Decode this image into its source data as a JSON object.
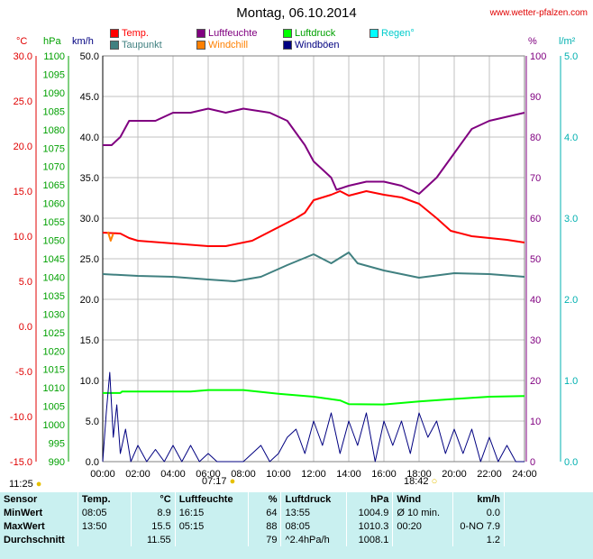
{
  "header": {
    "title": "Montag, 06.10.2014",
    "site": "www.wetter-pfalzen.com"
  },
  "legend": [
    {
      "label": "Temp.",
      "color": "#ff0000"
    },
    {
      "label": "Taupunkt",
      "color": "#408080"
    },
    {
      "label": "Luftfeuchte",
      "color": "#800080"
    },
    {
      "label": "Windchill",
      "color": "#ff8000"
    },
    {
      "label": "Luftdruck",
      "color": "#00ff00"
    },
    {
      "label": "Windböen",
      "color": "#000080"
    },
    {
      "label": "Regen°",
      "color": "#00ffff"
    }
  ],
  "units": {
    "temp": "°C",
    "pressure": "hPa",
    "wind": "km/h",
    "humidity": "%",
    "rain": "l/m²"
  },
  "sun_marks": {
    "sunrise_prev": "11:25",
    "sunrise": "07:17",
    "sunset": "18:42"
  },
  "chart_data": {
    "type": "line",
    "x": [
      "00:00",
      "02:00",
      "04:00",
      "06:00",
      "08:00",
      "10:00",
      "12:00",
      "14:00",
      "16:00",
      "18:00",
      "20:00",
      "22:00",
      "24:00"
    ],
    "axes": {
      "temp": {
        "label": "°C",
        "range": [
          -15,
          30
        ],
        "ticks": [
          "30.0",
          "25.0",
          "20.0",
          "15.0",
          "10.0",
          "5.0",
          "0.0",
          "-5.0",
          "-10.0",
          "-15.0"
        ]
      },
      "pressure": {
        "label": "hPa",
        "range": [
          990,
          1100
        ],
        "ticks": [
          "1100",
          "1095",
          "1090",
          "1085",
          "1080",
          "1075",
          "1070",
          "1065",
          "1060",
          "1055",
          "1050",
          "1045",
          "1040",
          "1035",
          "1030",
          "1025",
          "1020",
          "1015",
          "1010",
          "1005",
          "1000",
          "995",
          "990"
        ]
      },
      "wind": {
        "label": "km/h",
        "range": [
          0,
          50
        ],
        "ticks": [
          "50.0",
          "45.0",
          "40.0",
          "35.0",
          "30.0",
          "25.0",
          "20.0",
          "15.0",
          "10.0",
          "5.0",
          "0.0"
        ]
      },
      "humidity": {
        "label": "%",
        "range": [
          0,
          100
        ],
        "ticks": [
          "100",
          "90",
          "80",
          "70",
          "60",
          "50",
          "40",
          "30",
          "20",
          "10",
          "0"
        ]
      },
      "rain": {
        "label": "l/m²",
        "range": [
          0,
          5
        ],
        "ticks": [
          "5.0",
          "4.0",
          "3.0",
          "2.0",
          "1.0",
          "0.0"
        ]
      }
    },
    "series": [
      {
        "name": "Temp.",
        "axis": "temp",
        "color": "#ff0000",
        "points": [
          [
            0,
            10.4
          ],
          [
            1,
            10.3
          ],
          [
            1.5,
            9.8
          ],
          [
            2,
            9.5
          ],
          [
            4,
            9.2
          ],
          [
            6,
            8.9
          ],
          [
            7,
            8.9
          ],
          [
            8.5,
            9.5
          ],
          [
            10,
            11.0
          ],
          [
            11,
            12.0
          ],
          [
            11.5,
            12.6
          ],
          [
            12,
            14.0
          ],
          [
            13,
            14.6
          ],
          [
            13.5,
            15.0
          ],
          [
            14,
            14.5
          ],
          [
            15,
            15.0
          ],
          [
            16,
            14.6
          ],
          [
            17,
            14.3
          ],
          [
            18,
            13.6
          ],
          [
            19,
            12.0
          ],
          [
            19.8,
            10.6
          ],
          [
            21,
            10.0
          ],
          [
            23,
            9.6
          ],
          [
            24,
            9.3
          ]
        ]
      },
      {
        "name": "Taupunkt",
        "axis": "temp",
        "color": "#408080",
        "points": [
          [
            0,
            5.8
          ],
          [
            2,
            5.6
          ],
          [
            4,
            5.5
          ],
          [
            6,
            5.2
          ],
          [
            7.5,
            5.0
          ],
          [
            9,
            5.5
          ],
          [
            10.5,
            6.8
          ],
          [
            12,
            8.0
          ],
          [
            13,
            7.0
          ],
          [
            14,
            8.2
          ],
          [
            14.5,
            7.0
          ],
          [
            16,
            6.2
          ],
          [
            18,
            5.4
          ],
          [
            20,
            5.9
          ],
          [
            22,
            5.8
          ],
          [
            24,
            5.5
          ]
        ]
      },
      {
        "name": "Luftfeuchte",
        "axis": "humidity",
        "color": "#800080",
        "points": [
          [
            0,
            78
          ],
          [
            0.5,
            78
          ],
          [
            1,
            80
          ],
          [
            1.5,
            84
          ],
          [
            3,
            84
          ],
          [
            4,
            86
          ],
          [
            5,
            86
          ],
          [
            6,
            87
          ],
          [
            7,
            86
          ],
          [
            8,
            87
          ],
          [
            9.5,
            86
          ],
          [
            10.5,
            84
          ],
          [
            11.5,
            78
          ],
          [
            12,
            74
          ],
          [
            12.5,
            72
          ],
          [
            13,
            70
          ],
          [
            13.3,
            67
          ],
          [
            14,
            68
          ],
          [
            15,
            69
          ],
          [
            16,
            69
          ],
          [
            17,
            68
          ],
          [
            18,
            66
          ],
          [
            19,
            70
          ],
          [
            20,
            76
          ],
          [
            21,
            82
          ],
          [
            22,
            84
          ],
          [
            23,
            85
          ],
          [
            24,
            86
          ]
        ]
      },
      {
        "name": "Windchill",
        "axis": "temp",
        "color": "#ff8000",
        "points": [
          [
            0.3,
            10.5
          ],
          [
            0.45,
            9.5
          ],
          [
            0.6,
            10.3
          ]
        ]
      },
      {
        "name": "Luftdruck",
        "axis": "pressure",
        "color": "#00ff00",
        "points": [
          [
            0,
            1008.6
          ],
          [
            1,
            1008.6
          ],
          [
            1.1,
            1009.0
          ],
          [
            5,
            1009.0
          ],
          [
            6,
            1009.4
          ],
          [
            8,
            1009.4
          ],
          [
            10,
            1008.4
          ],
          [
            12,
            1007.6
          ],
          [
            13.5,
            1006.6
          ],
          [
            14,
            1005.6
          ],
          [
            16,
            1005.5
          ],
          [
            18,
            1006.3
          ],
          [
            20,
            1007.0
          ],
          [
            22,
            1007.6
          ],
          [
            24,
            1007.8
          ]
        ]
      },
      {
        "name": "Windböen",
        "axis": "wind",
        "color": "#000080",
        "points": [
          [
            0,
            0
          ],
          [
            0.2,
            6
          ],
          [
            0.4,
            11
          ],
          [
            0.6,
            3
          ],
          [
            0.8,
            7
          ],
          [
            1,
            1
          ],
          [
            1.3,
            4
          ],
          [
            1.6,
            0
          ],
          [
            2,
            2
          ],
          [
            2.5,
            0
          ],
          [
            3,
            1.5
          ],
          [
            3.5,
            0
          ],
          [
            4,
            2
          ],
          [
            4.5,
            0
          ],
          [
            5,
            2
          ],
          [
            5.5,
            0
          ],
          [
            6,
            1
          ],
          [
            6.5,
            0
          ],
          [
            7,
            0
          ],
          [
            8,
            0
          ],
          [
            8.5,
            1
          ],
          [
            9,
            2
          ],
          [
            9.5,
            0
          ],
          [
            10,
            1
          ],
          [
            10.5,
            3
          ],
          [
            11,
            4
          ],
          [
            11.5,
            1
          ],
          [
            12,
            5
          ],
          [
            12.5,
            2
          ],
          [
            13,
            6
          ],
          [
            13.5,
            1
          ],
          [
            14,
            5
          ],
          [
            14.5,
            2
          ],
          [
            15,
            6
          ],
          [
            15.5,
            0
          ],
          [
            16,
            5
          ],
          [
            16.5,
            2
          ],
          [
            17,
            5
          ],
          [
            17.5,
            1
          ],
          [
            18,
            6
          ],
          [
            18.5,
            3
          ],
          [
            19,
            5
          ],
          [
            19.5,
            1
          ],
          [
            20,
            4
          ],
          [
            20.5,
            1
          ],
          [
            21,
            4
          ],
          [
            21.5,
            0
          ],
          [
            22,
            3
          ],
          [
            22.5,
            0
          ],
          [
            23,
            2
          ],
          [
            23.5,
            0
          ],
          [
            24,
            0
          ]
        ]
      }
    ]
  },
  "table": {
    "headers": [
      "Sensor",
      "Temp.",
      "°C",
      "Luftfeuchte",
      "%",
      "Luftdruck",
      "hPa",
      "Wind",
      "km/h"
    ],
    "rows": [
      [
        "MinWert",
        "08:05",
        "8.9",
        "16:15",
        "64",
        "13:55",
        "1004.9",
        "Ø 10 min.",
        "0.0"
      ],
      [
        "MaxWert",
        "13:50",
        "15.5",
        "05:15",
        "88",
        "08:05",
        "1010.3",
        "00:20",
        "0-NO 7.9"
      ],
      [
        "Durchschnitt",
        "",
        "11.55",
        "",
        "79",
        "^2.4hPa/h",
        "1008.1",
        "",
        "1.2"
      ]
    ]
  }
}
